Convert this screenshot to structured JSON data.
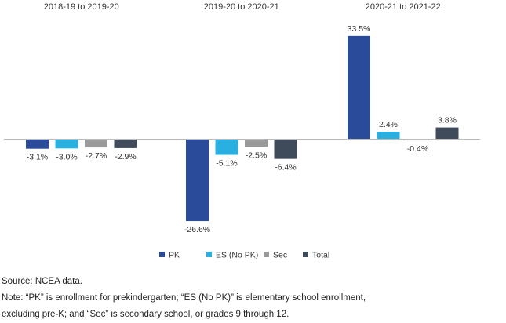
{
  "chart_data": {
    "type": "bar",
    "categories": [
      "2018-19 to 2019-20",
      "2019-20 to 2020-21",
      "2020-21 to 2021-22"
    ],
    "series": [
      {
        "name": "PK",
        "color": "#2a4a9a",
        "values": [
          -3.1,
          -26.6,
          33.5
        ],
        "labels": [
          "-3.1%",
          "-26.6%",
          "33.5%"
        ]
      },
      {
        "name": "ES (No PK)",
        "color": "#2ab0e0",
        "values": [
          -3.0,
          -5.1,
          2.4
        ],
        "labels": [
          "-3.0%",
          "-5.1%",
          "2.4%"
        ]
      },
      {
        "name": "Sec",
        "color": "#9a9a9a",
        "values": [
          -2.7,
          -2.5,
          -0.4
        ],
        "labels": [
          "-2.7%",
          "-2.5%",
          "-0.4%"
        ]
      },
      {
        "name": "Total",
        "color": "#3f4a5a",
        "values": [
          -2.9,
          -6.4,
          3.8
        ],
        "labels": [
          "-2.9%",
          "-6.4%",
          "3.8%"
        ]
      }
    ],
    "unit": "%",
    "legend_position": "bottom",
    "grid": false
  },
  "notes": {
    "source": "Source: NCEA data.",
    "note_line1": "Note: “PK” is enrollment for prekindergarten; “ES (No PK)” is elementary school enrollment,",
    "note_line2": "excluding pre-K; and “Sec” is secondary school, or grades 9 through 12."
  }
}
